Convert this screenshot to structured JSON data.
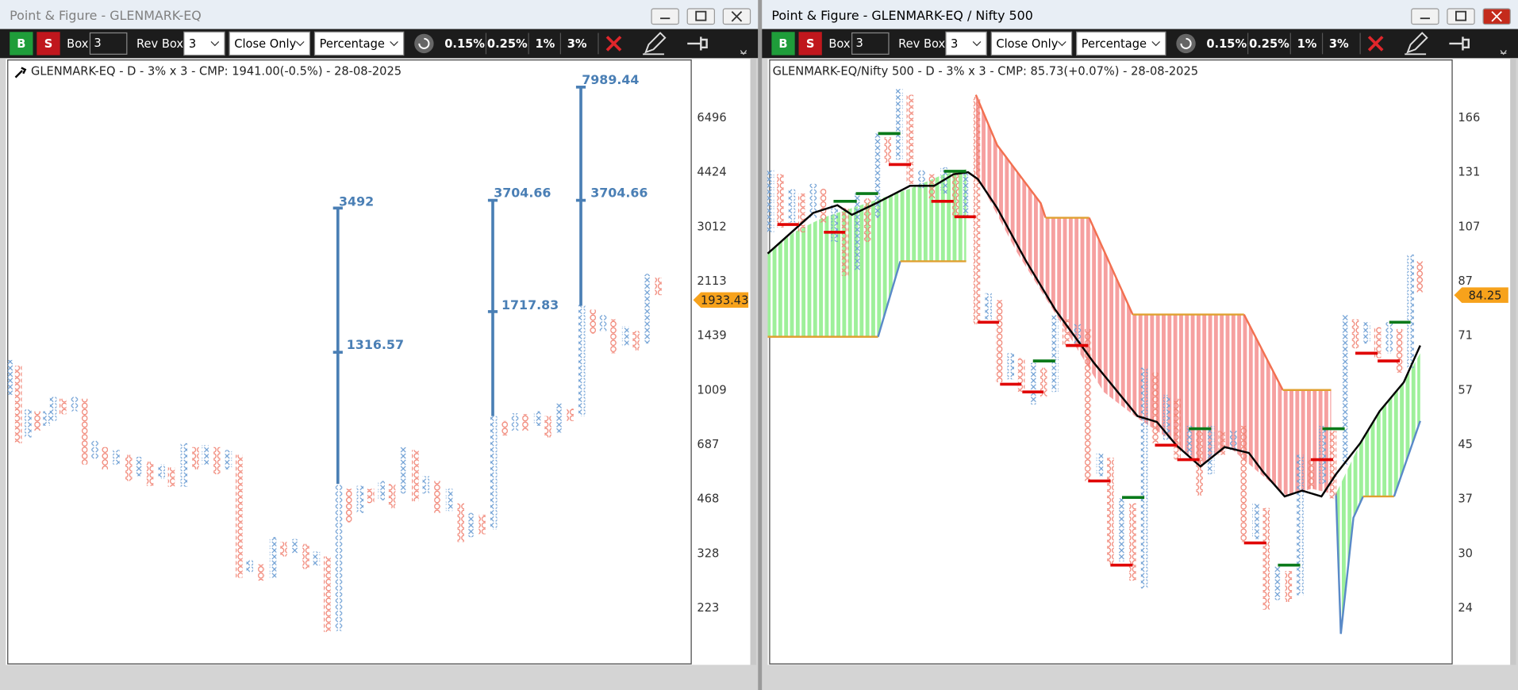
{
  "windows": [
    {
      "title": "Point & Figure - GLENMARK-EQ",
      "toolbar": {
        "buy": "B",
        "sell": "S",
        "box_label": "Box",
        "box_value": "3",
        "rev_label": "Rev Box",
        "rev_value": "3",
        "method": "Close Only",
        "scale": "Percentage",
        "presets": [
          "0.15%",
          "0.25%",
          "1%",
          "3%"
        ]
      },
      "header": "GLENMARK-EQ - D - 3% x 3 - CMP: 1941.00(-0.5%) - 28-08-2025",
      "axis_labels": [
        "6496",
        "4424",
        "3012",
        "2113",
        "1439",
        "1009",
        "687",
        "468",
        "328",
        "223"
      ],
      "price_tag": "1933.43",
      "annotations": [
        "7989.44",
        "3704.66",
        "3492",
        "3704.66",
        "1717.83",
        "1316.57"
      ]
    },
    {
      "title": "Point & Figure - GLENMARK-EQ / Nifty 500",
      "toolbar": {
        "buy": "B",
        "sell": "S",
        "box_label": "Box",
        "box_value": "3",
        "rev_label": "Rev Box",
        "rev_value": "3",
        "method": "Close Only",
        "scale": "Percentage",
        "presets": [
          "0.15%",
          "0.25%",
          "1%",
          "3%"
        ]
      },
      "header": "GLENMARK-EQ/Nifty 500 - D - 3% x 3 - CMP: 85.73(+0.07%) - 28-08-2025",
      "axis_labels": [
        "166",
        "131",
        "107",
        "87",
        "71",
        "57",
        "45",
        "37",
        "30",
        "24"
      ],
      "price_tag": "84.25"
    }
  ]
}
